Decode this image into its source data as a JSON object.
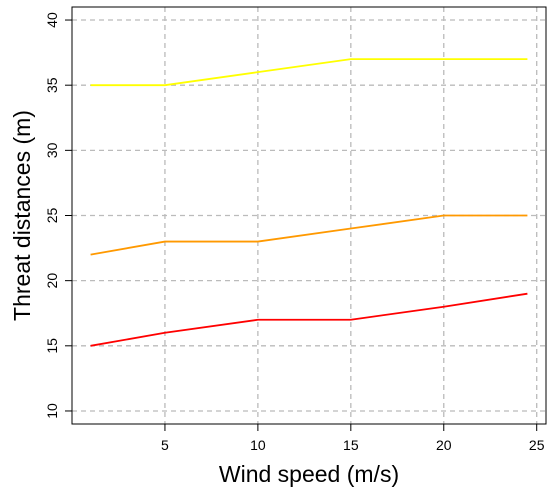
{
  "chart_data": {
    "type": "line",
    "xlabel": "Wind speed (m/s)",
    "ylabel": "Threat distances (m)",
    "xlim": [
      0,
      25.5
    ],
    "ylim": [
      9,
      41
    ],
    "xticks": [
      5,
      10,
      15,
      20,
      25
    ],
    "yticks": [
      10,
      15,
      20,
      25,
      30,
      35,
      40
    ],
    "grid": true,
    "legend": "none",
    "series": [
      {
        "color": "#ffff00",
        "x": [
          1,
          5,
          10,
          15,
          20,
          24.5
        ],
        "y": [
          35,
          35,
          36,
          37,
          37,
          37
        ]
      },
      {
        "color": "#ff9900",
        "x": [
          1,
          5,
          10,
          15,
          20,
          24.5
        ],
        "y": [
          22,
          23,
          23,
          24,
          25,
          25
        ]
      },
      {
        "color": "#ff0000",
        "x": [
          1,
          5,
          10,
          15,
          20,
          24.5
        ],
        "y": [
          15,
          16,
          17,
          17,
          18,
          19
        ]
      }
    ]
  }
}
